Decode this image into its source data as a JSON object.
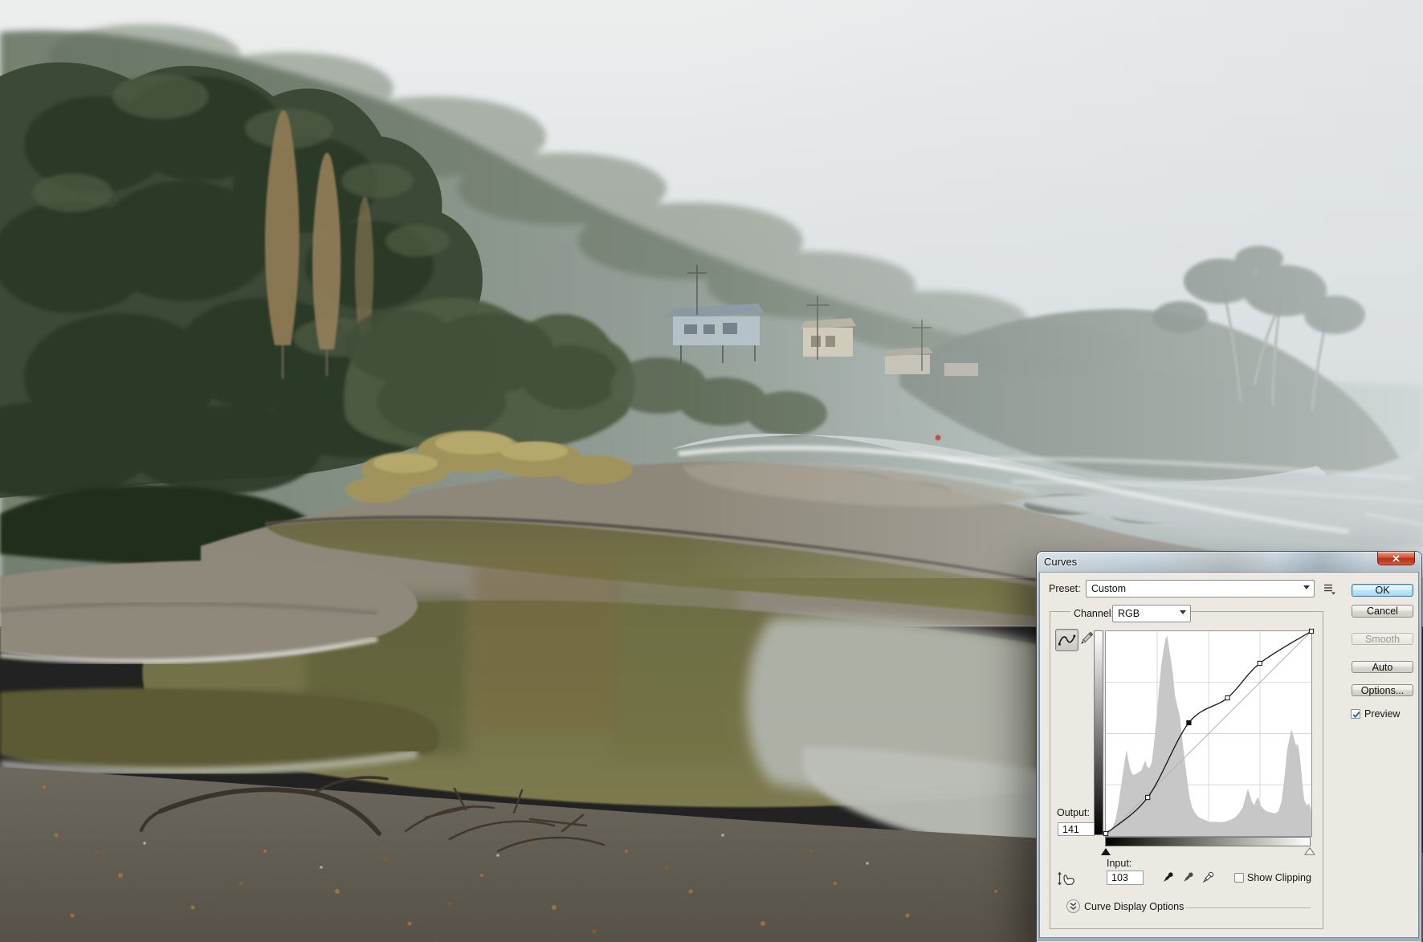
{
  "window": {
    "title": "Curves"
  },
  "preset_row": {
    "label": "Preset:",
    "value": "Custom"
  },
  "channel_row": {
    "label": "Channel:",
    "value": "RGB"
  },
  "action_buttons": {
    "ok": "OK",
    "cancel": "Cancel",
    "smooth": "Smooth",
    "auto": "Auto",
    "options": "Options...",
    "preview_label": "Preview",
    "preview_checked": true
  },
  "readouts": {
    "output_label": "Output:",
    "output_value": "141",
    "input_label": "Input:",
    "input_value": "103"
  },
  "show_clipping": {
    "label": "Show Clipping",
    "checked": false
  },
  "footer": {
    "curve_display_options_label": "Curve Display Options"
  },
  "colors": {
    "dialog_bg": "#ece9e2",
    "titlebar_glass": "#aebcc7",
    "close_button_red": "#c6452c",
    "ok_button_blue": "#bfe5f7",
    "histogram_gray": "#c7c7c7",
    "preview_check_blue": "#2e6db4"
  },
  "chart_data": {
    "type": "line",
    "title": "RGB tone curve over luminosity histogram",
    "xlabel": "Input",
    "ylabel": "Output",
    "x_range": [
      0,
      255
    ],
    "y_range": [
      0,
      255
    ],
    "grid": "quarters",
    "legend_position": "none",
    "curve_points": [
      [
        0,
        3
      ],
      [
        52,
        48
      ],
      [
        103,
        141
      ],
      [
        151,
        172
      ],
      [
        191,
        215
      ],
      [
        255,
        255
      ]
    ],
    "selected_point": [
      103,
      141
    ],
    "baseline": [
      [
        0,
        0
      ],
      [
        255,
        255
      ]
    ],
    "shadow_slider_input": 0,
    "highlight_slider_input": 255,
    "histogram": [
      [
        0,
        0.02
      ],
      [
        4,
        0.02
      ],
      [
        8,
        0.04
      ],
      [
        12,
        0.08
      ],
      [
        15,
        0.14
      ],
      [
        18,
        0.22
      ],
      [
        21,
        0.3
      ],
      [
        24,
        0.38
      ],
      [
        26,
        0.42
      ],
      [
        28,
        0.37
      ],
      [
        30,
        0.33
      ],
      [
        33,
        0.3
      ],
      [
        36,
        0.3
      ],
      [
        40,
        0.31
      ],
      [
        44,
        0.32
      ],
      [
        47,
        0.35
      ],
      [
        49,
        0.37
      ],
      [
        51,
        0.34
      ],
      [
        54,
        0.33
      ],
      [
        57,
        0.36
      ],
      [
        60,
        0.46
      ],
      [
        63,
        0.58
      ],
      [
        66,
        0.72
      ],
      [
        69,
        0.84
      ],
      [
        72,
        0.92
      ],
      [
        74,
        0.96
      ],
      [
        76,
        0.98
      ],
      [
        78,
        0.93
      ],
      [
        80,
        0.88
      ],
      [
        83,
        0.8
      ],
      [
        86,
        0.68
      ],
      [
        89,
        0.63
      ],
      [
        92,
        0.58
      ],
      [
        95,
        0.47
      ],
      [
        98,
        0.37
      ],
      [
        101,
        0.27
      ],
      [
        104,
        0.19
      ],
      [
        107,
        0.14
      ],
      [
        111,
        0.11
      ],
      [
        116,
        0.09
      ],
      [
        122,
        0.08
      ],
      [
        128,
        0.07
      ],
      [
        134,
        0.07
      ],
      [
        141,
        0.068
      ],
      [
        148,
        0.07
      ],
      [
        154,
        0.078
      ],
      [
        160,
        0.09
      ],
      [
        165,
        0.11
      ],
      [
        170,
        0.14
      ],
      [
        174,
        0.2
      ],
      [
        176,
        0.23
      ],
      [
        178,
        0.21
      ],
      [
        181,
        0.17
      ],
      [
        184,
        0.15
      ],
      [
        187,
        0.18
      ],
      [
        189,
        0.19
      ],
      [
        192,
        0.15
      ],
      [
        196,
        0.13
      ],
      [
        200,
        0.12
      ],
      [
        205,
        0.115
      ],
      [
        210,
        0.11
      ],
      [
        214,
        0.12
      ],
      [
        218,
        0.17
      ],
      [
        222,
        0.3
      ],
      [
        225,
        0.42
      ],
      [
        228,
        0.48
      ],
      [
        230,
        0.52
      ],
      [
        232,
        0.5
      ],
      [
        234,
        0.47
      ],
      [
        236,
        0.44
      ],
      [
        238,
        0.45
      ],
      [
        240,
        0.41
      ],
      [
        242,
        0.34
      ],
      [
        244,
        0.25
      ],
      [
        246,
        0.18
      ],
      [
        248,
        0.16
      ],
      [
        250,
        0.15
      ],
      [
        252,
        0.16
      ],
      [
        254,
        0.14
      ],
      [
        255,
        0.12
      ]
    ]
  }
}
